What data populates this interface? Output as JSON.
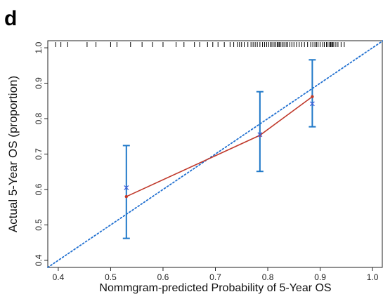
{
  "panel_label": "d",
  "chart_data": {
    "type": "line",
    "title": "",
    "xlabel": "Nommgram-predicted Probability of 5-Year OS",
    "ylabel": "Actual 5-Year OS (proportion)",
    "xlim": [
      0.38,
      1.02
    ],
    "ylim": [
      0.38,
      1.02
    ],
    "x_ticks": [
      0.4,
      0.5,
      0.6,
      0.7,
      0.8,
      0.9,
      1.0
    ],
    "x_tick_labels": [
      "0.4",
      "0.5",
      "0.6",
      "0.7",
      "0.8",
      "0.9",
      "1.0"
    ],
    "y_ticks": [
      0.4,
      0.5,
      0.6,
      0.7,
      0.8,
      0.9,
      1.0
    ],
    "y_tick_labels": [
      "0.4",
      "0.5",
      "0.6",
      "0.7",
      "0.8",
      "0.9",
      "1.0"
    ],
    "grid": false,
    "reference_line": {
      "x": [
        0.38,
        1.02
      ],
      "y": [
        0.38,
        1.02
      ],
      "color": "#1f6fd0",
      "style": "dotted"
    },
    "series": [
      {
        "marker": "dot",
        "color": "#c0392b",
        "x": [
          0.53,
          0.785,
          0.885
        ],
        "y": [
          0.58,
          0.753,
          0.862
        ]
      },
      {
        "marker": "x",
        "color": "#3f5fd9",
        "x": [
          0.53,
          0.785,
          0.885
        ],
        "y": [
          0.605,
          0.755,
          0.842
        ]
      }
    ],
    "error_bars": {
      "color": "#1f78c8",
      "x": [
        0.53,
        0.785,
        0.885
      ],
      "lower": [
        0.462,
        0.651,
        0.777
      ],
      "upper": [
        0.724,
        0.876,
        0.966
      ]
    },
    "rug": [
      0.395,
      0.405,
      0.418,
      0.455,
      0.472,
      0.5,
      0.512,
      0.538,
      0.56,
      0.58,
      0.6,
      0.625,
      0.64,
      0.66,
      0.67,
      0.685,
      0.695,
      0.705,
      0.717,
      0.728,
      0.735,
      0.742,
      0.746,
      0.75,
      0.755,
      0.762,
      0.768,
      0.772,
      0.776,
      0.78,
      0.785,
      0.79,
      0.794,
      0.798,
      0.802,
      0.805,
      0.808,
      0.812,
      0.815,
      0.818,
      0.82,
      0.822,
      0.825,
      0.828,
      0.831,
      0.835,
      0.838,
      0.842,
      0.846,
      0.85,
      0.855,
      0.86,
      0.865,
      0.87,
      0.876,
      0.882,
      0.886,
      0.89,
      0.893,
      0.896,
      0.9,
      0.905,
      0.908,
      0.912,
      0.915,
      0.918,
      0.92,
      0.922,
      0.924,
      0.926,
      0.93,
      0.934,
      0.94,
      0.946
    ],
    "rug_color": "#000000"
  }
}
